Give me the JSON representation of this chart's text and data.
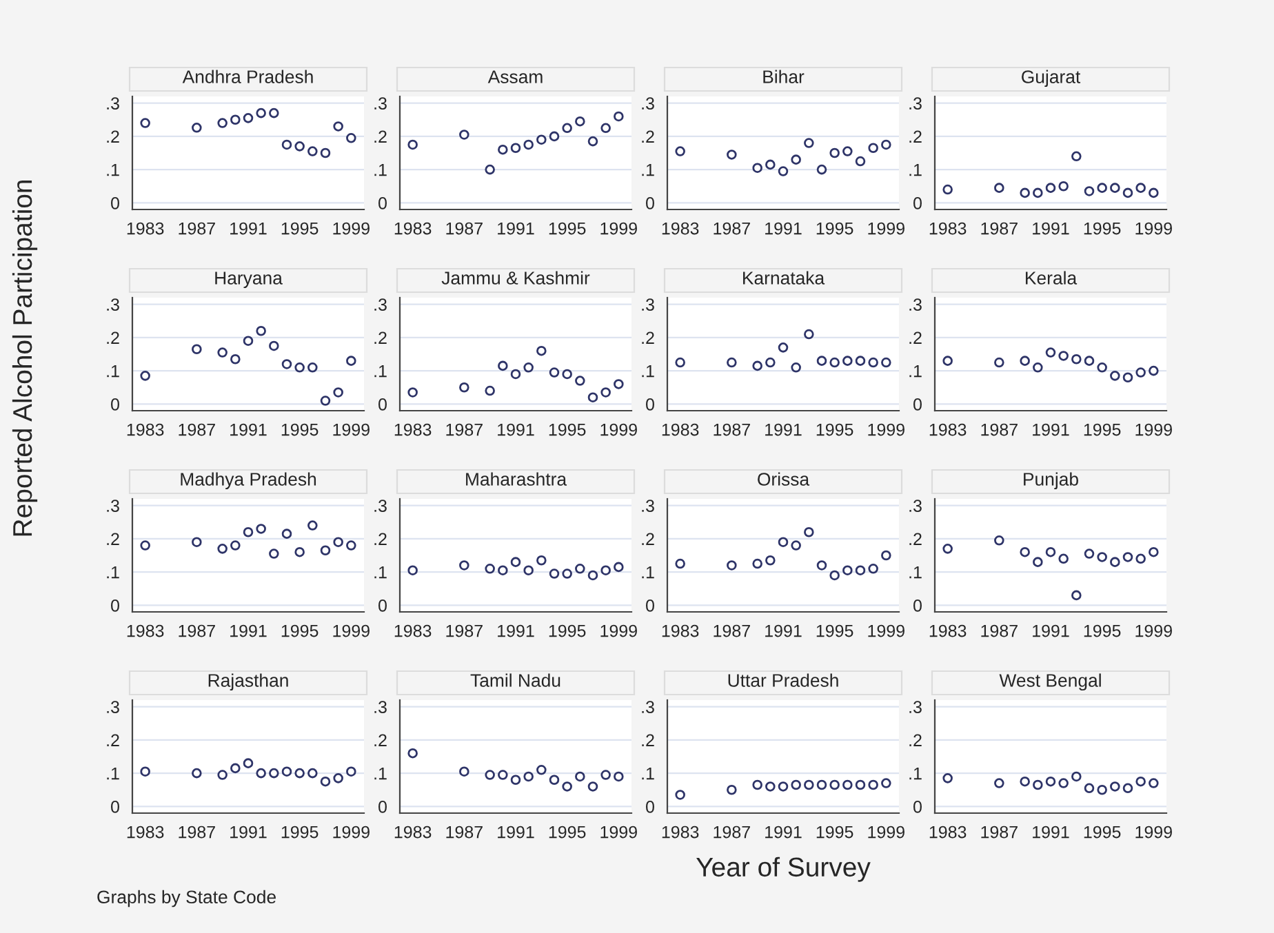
{
  "chart_data": [
    {
      "type": "scatter",
      "title": "Andhra Pradesh",
      "ylabel": "Reported Alcohol Participation",
      "annotations": [
        "Graphs by State Code"
      ],
      "color": "#2e3468",
      "marker": "circle",
      "grid": "y",
      "xlim": [
        1982,
        2000
      ],
      "ylim": [
        -0.02,
        0.32
      ],
      "xticks": [
        1983,
        1987,
        1991,
        1995,
        1999
      ],
      "yticks": [
        {
          "value": 0,
          "label": "0"
        },
        {
          "value": 0.1,
          "label": ".1"
        },
        {
          "value": 0.2,
          "label": ".2"
        },
        {
          "value": 0.3,
          "label": ".3"
        }
      ],
      "x": [
        1983,
        1987,
        1989,
        1990,
        1991,
        1992,
        1993,
        1994,
        1995,
        1996,
        1997,
        1998,
        1999
      ],
      "values": [
        0.24,
        0.226,
        0.24,
        0.25,
        0.255,
        0.27,
        0.27,
        0.175,
        0.17,
        0.155,
        0.15,
        0.23,
        0.195
      ]
    },
    {
      "type": "scatter",
      "title": "Assam",
      "color": "#2e3468",
      "marker": "circle",
      "grid": "y",
      "xlim": [
        1982,
        2000
      ],
      "ylim": [
        -0.02,
        0.32
      ],
      "xticks": [
        1983,
        1987,
        1991,
        1995,
        1999
      ],
      "yticks": [
        {
          "value": 0,
          "label": "0"
        },
        {
          "value": 0.1,
          "label": ".1"
        },
        {
          "value": 0.2,
          "label": ".2"
        },
        {
          "value": 0.3,
          "label": ".3"
        }
      ],
      "x": [
        1983,
        1987,
        1989,
        1990,
        1991,
        1992,
        1993,
        1994,
        1995,
        1996,
        1997,
        1998,
        1999
      ],
      "values": [
        0.175,
        0.205,
        0.1,
        0.16,
        0.165,
        0.175,
        0.19,
        0.2,
        0.225,
        0.245,
        0.185,
        0.225,
        0.26
      ]
    },
    {
      "type": "scatter",
      "title": "Bihar",
      "color": "#2e3468",
      "marker": "circle",
      "grid": "y",
      "xlim": [
        1982,
        2000
      ],
      "ylim": [
        -0.02,
        0.32
      ],
      "xticks": [
        1983,
        1987,
        1991,
        1995,
        1999
      ],
      "yticks": [
        {
          "value": 0,
          "label": "0"
        },
        {
          "value": 0.1,
          "label": ".1"
        },
        {
          "value": 0.2,
          "label": ".2"
        },
        {
          "value": 0.3,
          "label": ".3"
        }
      ],
      "x": [
        1983,
        1987,
        1989,
        1990,
        1991,
        1992,
        1993,
        1994,
        1995,
        1996,
        1997,
        1998,
        1999
      ],
      "values": [
        0.155,
        0.145,
        0.105,
        0.115,
        0.095,
        0.13,
        0.18,
        0.1,
        0.15,
        0.155,
        0.125,
        0.165,
        0.175
      ]
    },
    {
      "type": "scatter",
      "title": "Gujarat",
      "color": "#2e3468",
      "marker": "circle",
      "grid": "y",
      "xlim": [
        1982,
        2000
      ],
      "ylim": [
        -0.02,
        0.32
      ],
      "xticks": [
        1983,
        1987,
        1991,
        1995,
        1999
      ],
      "yticks": [
        {
          "value": 0,
          "label": "0"
        },
        {
          "value": 0.1,
          "label": ".1"
        },
        {
          "value": 0.2,
          "label": ".2"
        },
        {
          "value": 0.3,
          "label": ".3"
        }
      ],
      "x": [
        1983,
        1987,
        1989,
        1990,
        1991,
        1992,
        1993,
        1994,
        1995,
        1996,
        1997,
        1998,
        1999
      ],
      "values": [
        0.04,
        0.045,
        0.03,
        0.03,
        0.045,
        0.05,
        0.14,
        0.035,
        0.045,
        0.045,
        0.03,
        0.045,
        0.03
      ]
    },
    {
      "type": "scatter",
      "title": "Haryana",
      "color": "#2e3468",
      "marker": "circle",
      "grid": "y",
      "xlim": [
        1982,
        2000
      ],
      "ylim": [
        -0.02,
        0.32
      ],
      "xticks": [
        1983,
        1987,
        1991,
        1995,
        1999
      ],
      "yticks": [
        {
          "value": 0,
          "label": "0"
        },
        {
          "value": 0.1,
          "label": ".1"
        },
        {
          "value": 0.2,
          "label": ".2"
        },
        {
          "value": 0.3,
          "label": ".3"
        }
      ],
      "x": [
        1983,
        1987,
        1989,
        1990,
        1991,
        1992,
        1993,
        1994,
        1995,
        1996,
        1997,
        1998,
        1999
      ],
      "values": [
        0.085,
        0.165,
        0.155,
        0.135,
        0.19,
        0.22,
        0.175,
        0.12,
        0.11,
        0.11,
        0.01,
        0.035,
        0.13
      ]
    },
    {
      "type": "scatter",
      "title": "Jammu & Kashmir",
      "color": "#2e3468",
      "marker": "circle",
      "grid": "y",
      "xlim": [
        1982,
        2000
      ],
      "ylim": [
        -0.02,
        0.32
      ],
      "xticks": [
        1983,
        1987,
        1991,
        1995,
        1999
      ],
      "yticks": [
        {
          "value": 0,
          "label": "0"
        },
        {
          "value": 0.1,
          "label": ".1"
        },
        {
          "value": 0.2,
          "label": ".2"
        },
        {
          "value": 0.3,
          "label": ".3"
        }
      ],
      "x": [
        1983,
        1987,
        1989,
        1990,
        1991,
        1992,
        1993,
        1994,
        1995,
        1996,
        1997,
        1998,
        1999
      ],
      "values": [
        0.035,
        0.05,
        0.04,
        0.115,
        0.09,
        0.11,
        0.16,
        0.095,
        0.09,
        0.07,
        0.02,
        0.035,
        0.06
      ]
    },
    {
      "type": "scatter",
      "title": "Karnataka",
      "color": "#2e3468",
      "marker": "circle",
      "grid": "y",
      "xlim": [
        1982,
        2000
      ],
      "ylim": [
        -0.02,
        0.32
      ],
      "xticks": [
        1983,
        1987,
        1991,
        1995,
        1999
      ],
      "yticks": [
        {
          "value": 0,
          "label": "0"
        },
        {
          "value": 0.1,
          "label": ".1"
        },
        {
          "value": 0.2,
          "label": ".2"
        },
        {
          "value": 0.3,
          "label": ".3"
        }
      ],
      "x": [
        1983,
        1987,
        1989,
        1990,
        1991,
        1992,
        1993,
        1994,
        1995,
        1996,
        1997,
        1998,
        1999
      ],
      "values": [
        0.125,
        0.125,
        0.115,
        0.125,
        0.17,
        0.11,
        0.21,
        0.13,
        0.125,
        0.13,
        0.13,
        0.125,
        0.125
      ]
    },
    {
      "type": "scatter",
      "title": "Kerala",
      "color": "#2e3468",
      "marker": "circle",
      "grid": "y",
      "xlim": [
        1982,
        2000
      ],
      "ylim": [
        -0.02,
        0.32
      ],
      "xticks": [
        1983,
        1987,
        1991,
        1995,
        1999
      ],
      "yticks": [
        {
          "value": 0,
          "label": "0"
        },
        {
          "value": 0.1,
          "label": ".1"
        },
        {
          "value": 0.2,
          "label": ".2"
        },
        {
          "value": 0.3,
          "label": ".3"
        }
      ],
      "x": [
        1983,
        1987,
        1989,
        1990,
        1991,
        1992,
        1993,
        1994,
        1995,
        1996,
        1997,
        1998,
        1999
      ],
      "values": [
        0.13,
        0.125,
        0.13,
        0.11,
        0.155,
        0.145,
        0.135,
        0.13,
        0.11,
        0.085,
        0.08,
        0.095,
        0.1
      ]
    },
    {
      "type": "scatter",
      "title": "Madhya Pradesh",
      "color": "#2e3468",
      "marker": "circle",
      "grid": "y",
      "xlim": [
        1982,
        2000
      ],
      "ylim": [
        -0.02,
        0.32
      ],
      "xticks": [
        1983,
        1987,
        1991,
        1995,
        1999
      ],
      "yticks": [
        {
          "value": 0,
          "label": "0"
        },
        {
          "value": 0.1,
          "label": ".1"
        },
        {
          "value": 0.2,
          "label": ".2"
        },
        {
          "value": 0.3,
          "label": ".3"
        }
      ],
      "x": [
        1983,
        1987,
        1989,
        1990,
        1991,
        1992,
        1993,
        1994,
        1995,
        1996,
        1997,
        1998,
        1999
      ],
      "values": [
        0.18,
        0.19,
        0.17,
        0.18,
        0.22,
        0.23,
        0.155,
        0.215,
        0.16,
        0.24,
        0.165,
        0.19,
        0.18
      ]
    },
    {
      "type": "scatter",
      "title": "Maharashtra",
      "color": "#2e3468",
      "marker": "circle",
      "grid": "y",
      "xlim": [
        1982,
        2000
      ],
      "ylim": [
        -0.02,
        0.32
      ],
      "xticks": [
        1983,
        1987,
        1991,
        1995,
        1999
      ],
      "yticks": [
        {
          "value": 0,
          "label": "0"
        },
        {
          "value": 0.1,
          "label": ".1"
        },
        {
          "value": 0.2,
          "label": ".2"
        },
        {
          "value": 0.3,
          "label": ".3"
        }
      ],
      "x": [
        1983,
        1987,
        1989,
        1990,
        1991,
        1992,
        1993,
        1994,
        1995,
        1996,
        1997,
        1998,
        1999
      ],
      "values": [
        0.105,
        0.12,
        0.11,
        0.105,
        0.13,
        0.105,
        0.135,
        0.095,
        0.095,
        0.11,
        0.09,
        0.105,
        0.115
      ]
    },
    {
      "type": "scatter",
      "title": "Orissa",
      "color": "#2e3468",
      "marker": "circle",
      "grid": "y",
      "xlim": [
        1982,
        2000
      ],
      "ylim": [
        -0.02,
        0.32
      ],
      "xticks": [
        1983,
        1987,
        1991,
        1995,
        1999
      ],
      "yticks": [
        {
          "value": 0,
          "label": "0"
        },
        {
          "value": 0.1,
          "label": ".1"
        },
        {
          "value": 0.2,
          "label": ".2"
        },
        {
          "value": 0.3,
          "label": ".3"
        }
      ],
      "x": [
        1983,
        1987,
        1989,
        1990,
        1991,
        1992,
        1993,
        1994,
        1995,
        1996,
        1997,
        1998,
        1999
      ],
      "values": [
        0.125,
        0.12,
        0.125,
        0.135,
        0.19,
        0.18,
        0.22,
        0.12,
        0.09,
        0.105,
        0.105,
        0.11,
        0.15
      ]
    },
    {
      "type": "scatter",
      "title": "Punjab",
      "color": "#2e3468",
      "marker": "circle",
      "grid": "y",
      "xlim": [
        1982,
        2000
      ],
      "ylim": [
        -0.02,
        0.32
      ],
      "xticks": [
        1983,
        1987,
        1991,
        1995,
        1999
      ],
      "yticks": [
        {
          "value": 0,
          "label": "0"
        },
        {
          "value": 0.1,
          "label": ".1"
        },
        {
          "value": 0.2,
          "label": ".2"
        },
        {
          "value": 0.3,
          "label": ".3"
        }
      ],
      "x": [
        1983,
        1987,
        1989,
        1990,
        1991,
        1992,
        1993,
        1994,
        1995,
        1996,
        1997,
        1998,
        1999
      ],
      "values": [
        0.17,
        0.195,
        0.16,
        0.13,
        0.16,
        0.14,
        0.03,
        0.155,
        0.145,
        0.13,
        0.145,
        0.14,
        0.16
      ]
    },
    {
      "type": "scatter",
      "title": "Rajasthan",
      "color": "#2e3468",
      "marker": "circle",
      "grid": "y",
      "xlim": [
        1982,
        2000
      ],
      "ylim": [
        -0.02,
        0.32
      ],
      "xticks": [
        1983,
        1987,
        1991,
        1995,
        1999
      ],
      "yticks": [
        {
          "value": 0,
          "label": "0"
        },
        {
          "value": 0.1,
          "label": ".1"
        },
        {
          "value": 0.2,
          "label": ".2"
        },
        {
          "value": 0.3,
          "label": ".3"
        }
      ],
      "x": [
        1983,
        1987,
        1989,
        1990,
        1991,
        1992,
        1993,
        1994,
        1995,
        1996,
        1997,
        1998,
        1999
      ],
      "values": [
        0.105,
        0.1,
        0.095,
        0.115,
        0.13,
        0.1,
        0.1,
        0.105,
        0.1,
        0.1,
        0.075,
        0.085,
        0.105
      ]
    },
    {
      "type": "scatter",
      "title": "Tamil Nadu",
      "color": "#2e3468",
      "marker": "circle",
      "grid": "y",
      "xlim": [
        1982,
        2000
      ],
      "ylim": [
        -0.02,
        0.32
      ],
      "xticks": [
        1983,
        1987,
        1991,
        1995,
        1999
      ],
      "yticks": [
        {
          "value": 0,
          "label": "0"
        },
        {
          "value": 0.1,
          "label": ".1"
        },
        {
          "value": 0.2,
          "label": ".2"
        },
        {
          "value": 0.3,
          "label": ".3"
        }
      ],
      "x": [
        1983,
        1987,
        1989,
        1990,
        1991,
        1992,
        1993,
        1994,
        1995,
        1996,
        1997,
        1998,
        1999
      ],
      "values": [
        0.16,
        0.105,
        0.095,
        0.095,
        0.08,
        0.09,
        0.11,
        0.08,
        0.06,
        0.09,
        0.06,
        0.095,
        0.09
      ]
    },
    {
      "type": "scatter",
      "title": "Uttar Pradesh",
      "xlabel": "Year of Survey",
      "color": "#2e3468",
      "marker": "circle",
      "grid": "y",
      "xlim": [
        1982,
        2000
      ],
      "ylim": [
        -0.02,
        0.32
      ],
      "xticks": [
        1983,
        1987,
        1991,
        1995,
        1999
      ],
      "yticks": [
        {
          "value": 0,
          "label": "0"
        },
        {
          "value": 0.1,
          "label": ".1"
        },
        {
          "value": 0.2,
          "label": ".2"
        },
        {
          "value": 0.3,
          "label": ".3"
        }
      ],
      "x": [
        1983,
        1987,
        1989,
        1990,
        1991,
        1992,
        1993,
        1994,
        1995,
        1996,
        1997,
        1998,
        1999
      ],
      "values": [
        0.035,
        0.05,
        0.065,
        0.06,
        0.06,
        0.065,
        0.065,
        0.065,
        0.065,
        0.065,
        0.065,
        0.065,
        0.07
      ]
    },
    {
      "type": "scatter",
      "title": "West Bengal",
      "color": "#2e3468",
      "marker": "circle",
      "grid": "y",
      "xlim": [
        1982,
        2000
      ],
      "ylim": [
        -0.02,
        0.32
      ],
      "xticks": [
        1983,
        1987,
        1991,
        1995,
        1999
      ],
      "yticks": [
        {
          "value": 0,
          "label": "0"
        },
        {
          "value": 0.1,
          "label": ".1"
        },
        {
          "value": 0.2,
          "label": ".2"
        },
        {
          "value": 0.3,
          "label": ".3"
        }
      ],
      "x": [
        1983,
        1987,
        1989,
        1990,
        1991,
        1992,
        1993,
        1994,
        1995,
        1996,
        1997,
        1998,
        1999
      ],
      "values": [
        0.085,
        0.07,
        0.075,
        0.065,
        0.075,
        0.07,
        0.09,
        0.055,
        0.05,
        0.06,
        0.055,
        0.075,
        0.07
      ]
    }
  ]
}
